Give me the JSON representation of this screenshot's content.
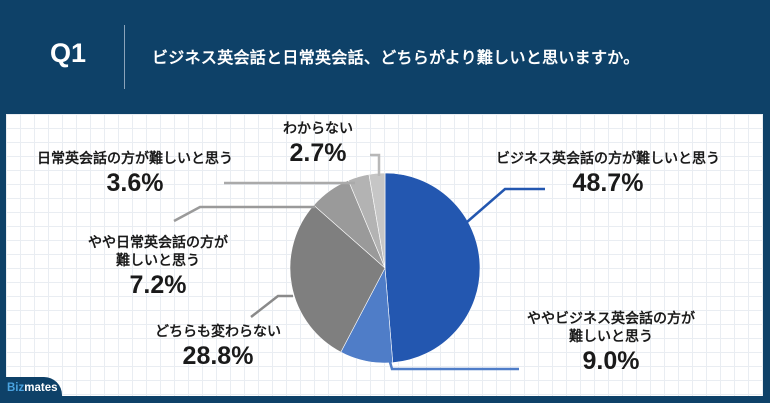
{
  "header": {
    "question_number": "Q1",
    "question_text": "ビジネス英会話と日常英会話、どちらがより難しいと思いますか。"
  },
  "brand": {
    "logo_part1": "Biz",
    "logo_part2": "mates",
    "colors": {
      "navy": "#0e4168",
      "logo_blue": "#4aa3e0"
    }
  },
  "labels": {
    "business_harder": {
      "text": "ビジネス英会話の方が難しいと思う",
      "value": "48.7%"
    },
    "somewhat_business_harder": {
      "line1": "ややビジネス英会話の方が",
      "line2": "難しいと思う",
      "value": "9.0%"
    },
    "same": {
      "text": "どちらも変わらない",
      "value": "28.8%"
    },
    "somewhat_daily_harder": {
      "line1": "やや日常英会話の方が",
      "line2": "難しいと思う",
      "value": "7.2%"
    },
    "daily_harder": {
      "text": "日常英会話の方が難しいと思う",
      "value": "3.6%"
    },
    "dont_know": {
      "text": "わからない",
      "value": "2.7%"
    }
  },
  "chart_data": {
    "type": "pie",
    "title": "ビジネス英会話と日常英会話、どちらがより難しいと思いますか。",
    "start_angle": "12 o'clock, clockwise",
    "categories": [
      "ビジネス英会話の方が難しいと思う",
      "ややビジネス英会話の方が難しいと思う",
      "どちらも変わらない",
      "やや日常英会話の方が難しいと思う",
      "日常英会話の方が難しいと思う",
      "わからない"
    ],
    "values": [
      48.7,
      9.0,
      28.8,
      7.2,
      3.6,
      2.7
    ],
    "colors": [
      "#2357b0",
      "#4f7dc8",
      "#7f7f7f",
      "#9a9a9a",
      "#b3b3b3",
      "#c6c6c6"
    ],
    "legend": "none (direct labels with leader lines)"
  }
}
